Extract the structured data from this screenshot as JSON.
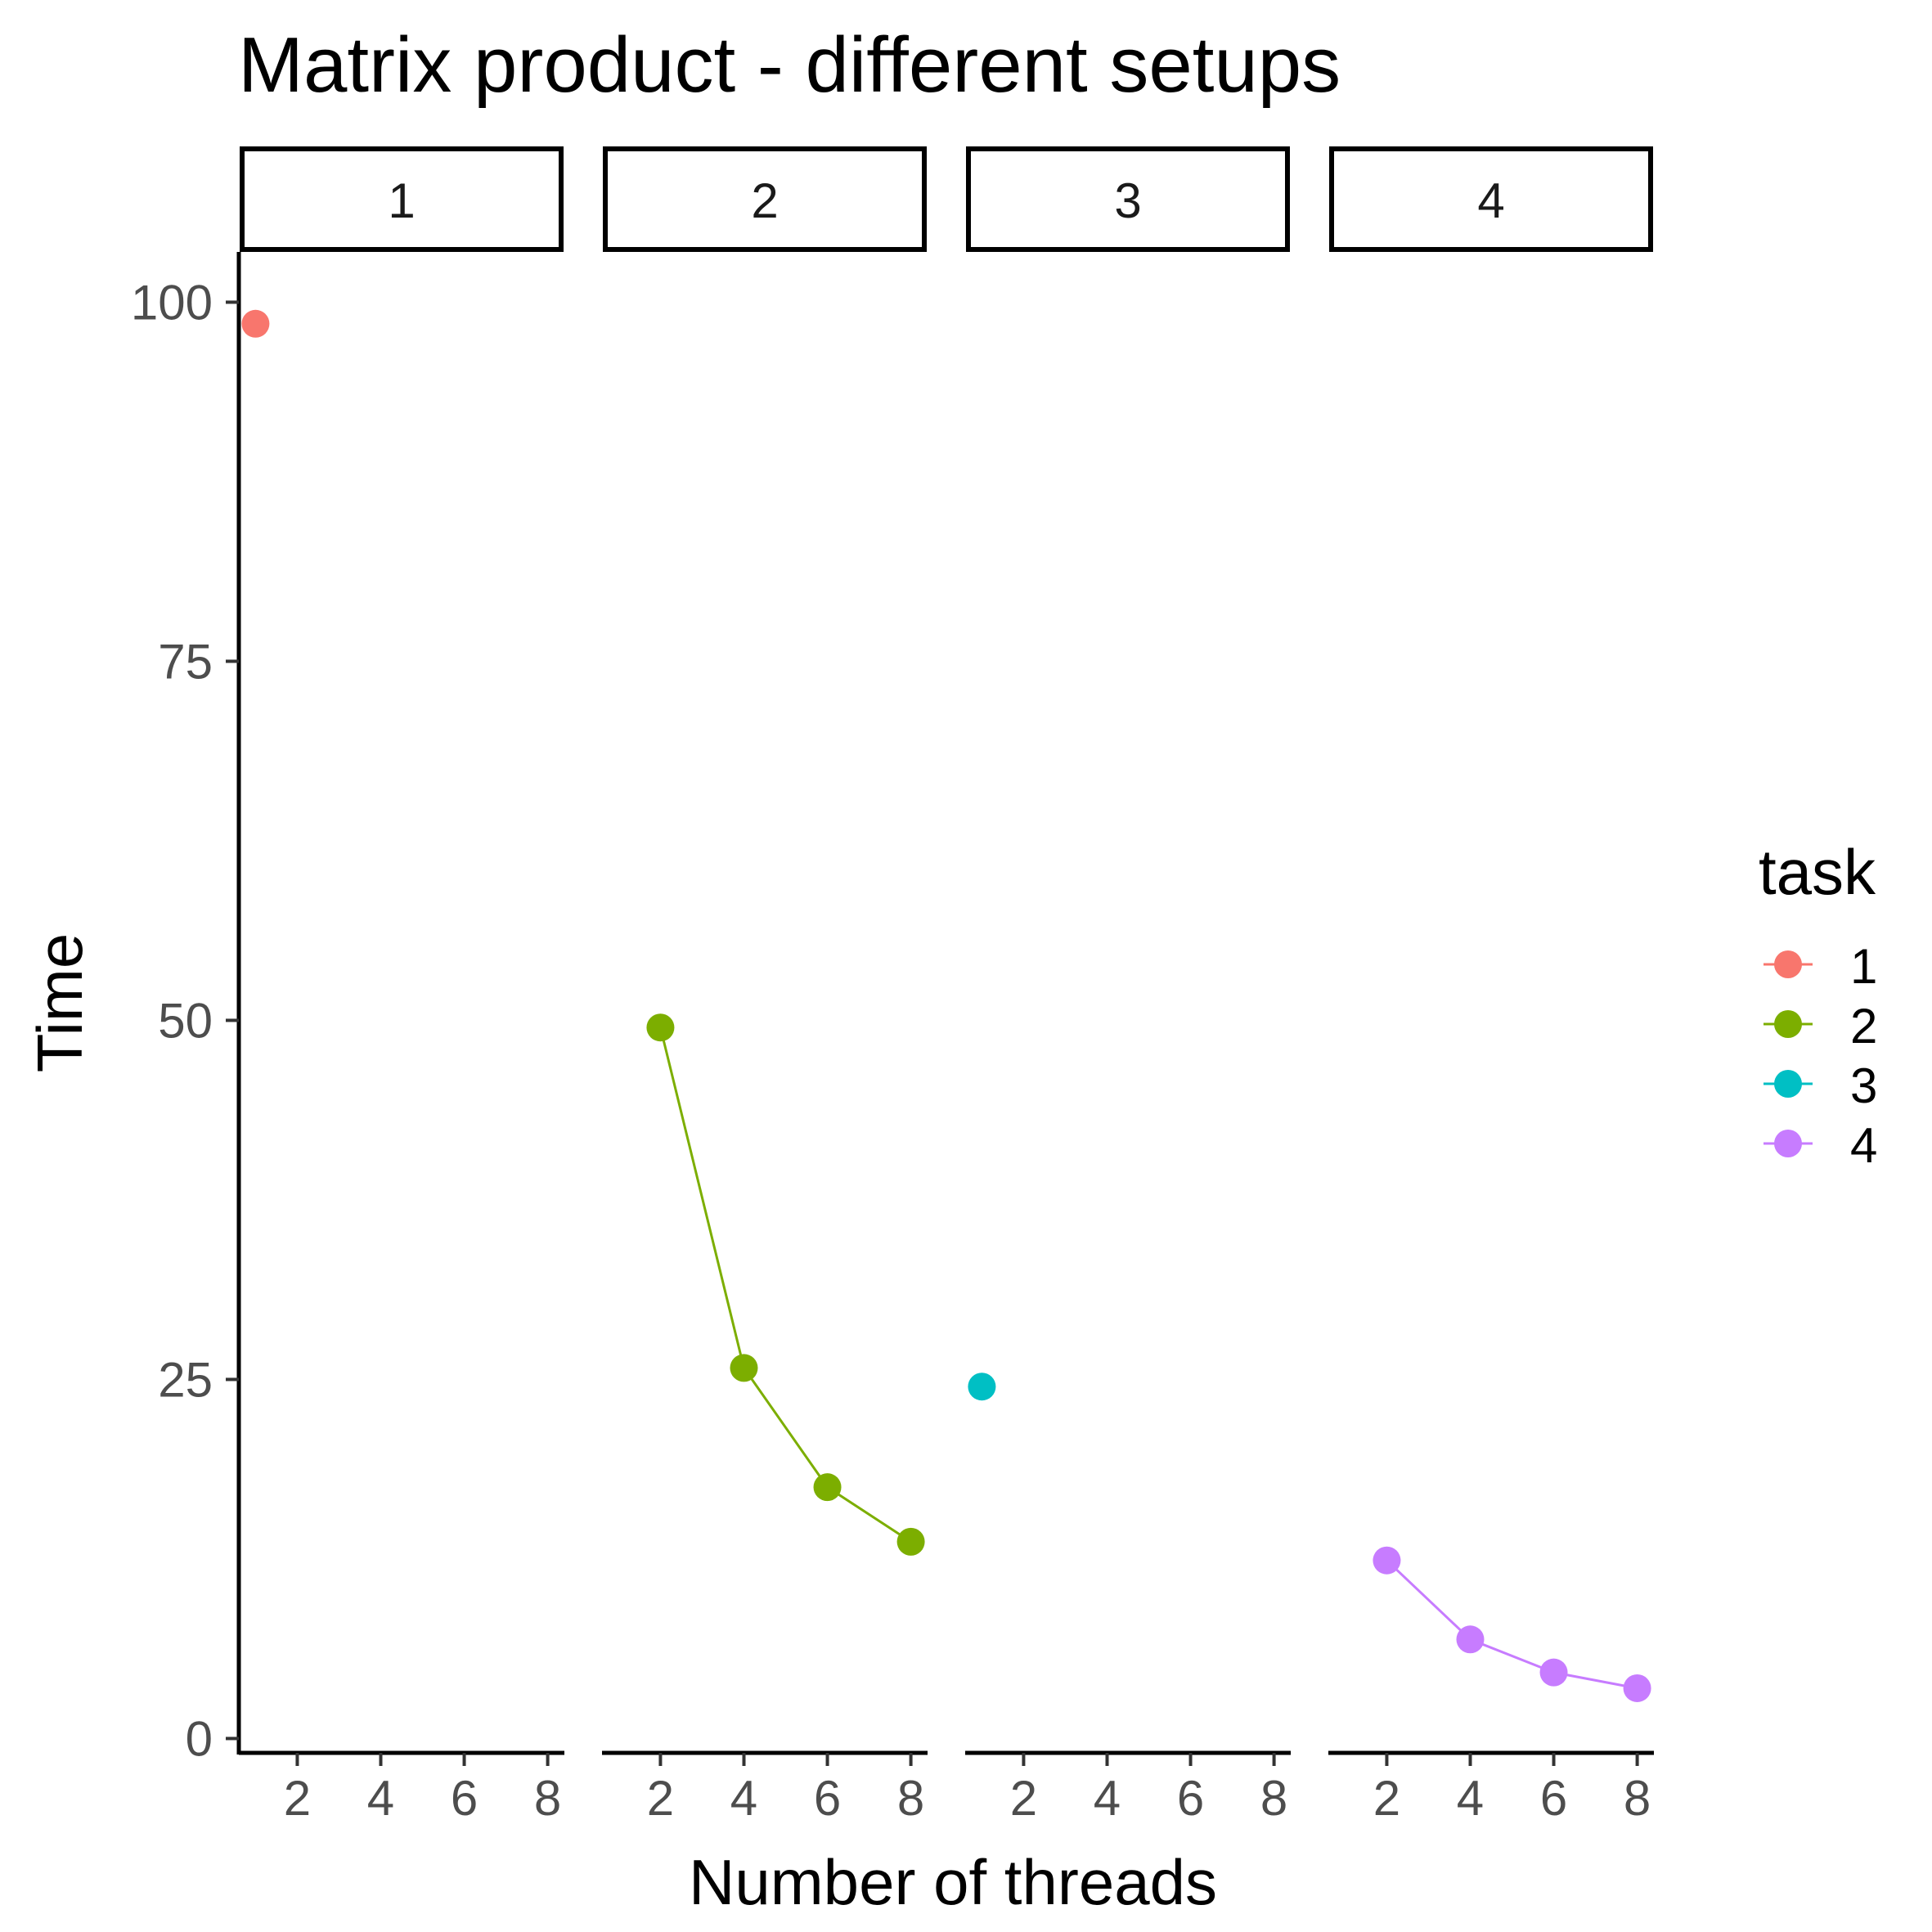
{
  "chart_data": {
    "type": "scatter",
    "title": "Matrix product - different setups",
    "xlabel": "Number of threads",
    "ylabel": "Time",
    "facets": [
      "1",
      "2",
      "3",
      "4"
    ],
    "xlim": [
      0.6,
      8.4
    ],
    "ylim": [
      -1,
      103.5
    ],
    "x_ticks": [
      "2",
      "4",
      "6",
      "8"
    ],
    "y_ticks": [
      "0",
      "25",
      "50",
      "75",
      "100"
    ],
    "grid": false,
    "legend": {
      "title": "task",
      "position": "right",
      "entries": [
        "1",
        "2",
        "3",
        "4"
      ]
    },
    "series": [
      {
        "name": "1",
        "facet": "1",
        "color": "#F8766D",
        "x": [
          1
        ],
        "y": [
          98.5
        ]
      },
      {
        "name": "2",
        "facet": "2",
        "color": "#7CAE00",
        "x": [
          2,
          4,
          6,
          8
        ],
        "y": [
          49.5,
          25.8,
          17.5,
          13.7
        ]
      },
      {
        "name": "3",
        "facet": "3",
        "color": "#00BFC4",
        "x": [
          1
        ],
        "y": [
          24.5
        ]
      },
      {
        "name": "4",
        "facet": "4",
        "color": "#C77CFF",
        "x": [
          2,
          4,
          6,
          8
        ],
        "y": [
          12.4,
          6.9,
          4.6,
          3.5
        ]
      }
    ]
  }
}
